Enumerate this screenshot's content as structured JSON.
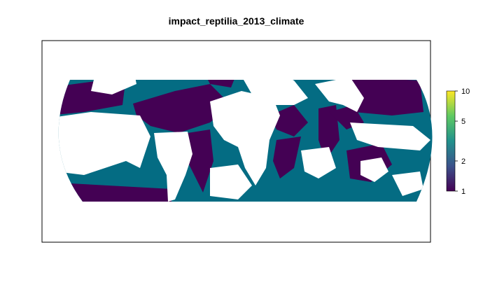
{
  "title": "impact_reptilia_2013_climate",
  "colors": {
    "impact_low": "#440154",
    "impact_mid": "#046c83",
    "land": "#ffffff",
    "frame": "#000000"
  },
  "legend": {
    "scale": "log",
    "ticks": [
      {
        "label": "10",
        "value": 10
      },
      {
        "label": "5",
        "value": 5
      },
      {
        "label": "2",
        "value": 2
      },
      {
        "label": "1",
        "value": 1
      }
    ],
    "gradient": [
      "#440154",
      "#3b528b",
      "#21918c",
      "#5ec962",
      "#fde725"
    ]
  }
}
